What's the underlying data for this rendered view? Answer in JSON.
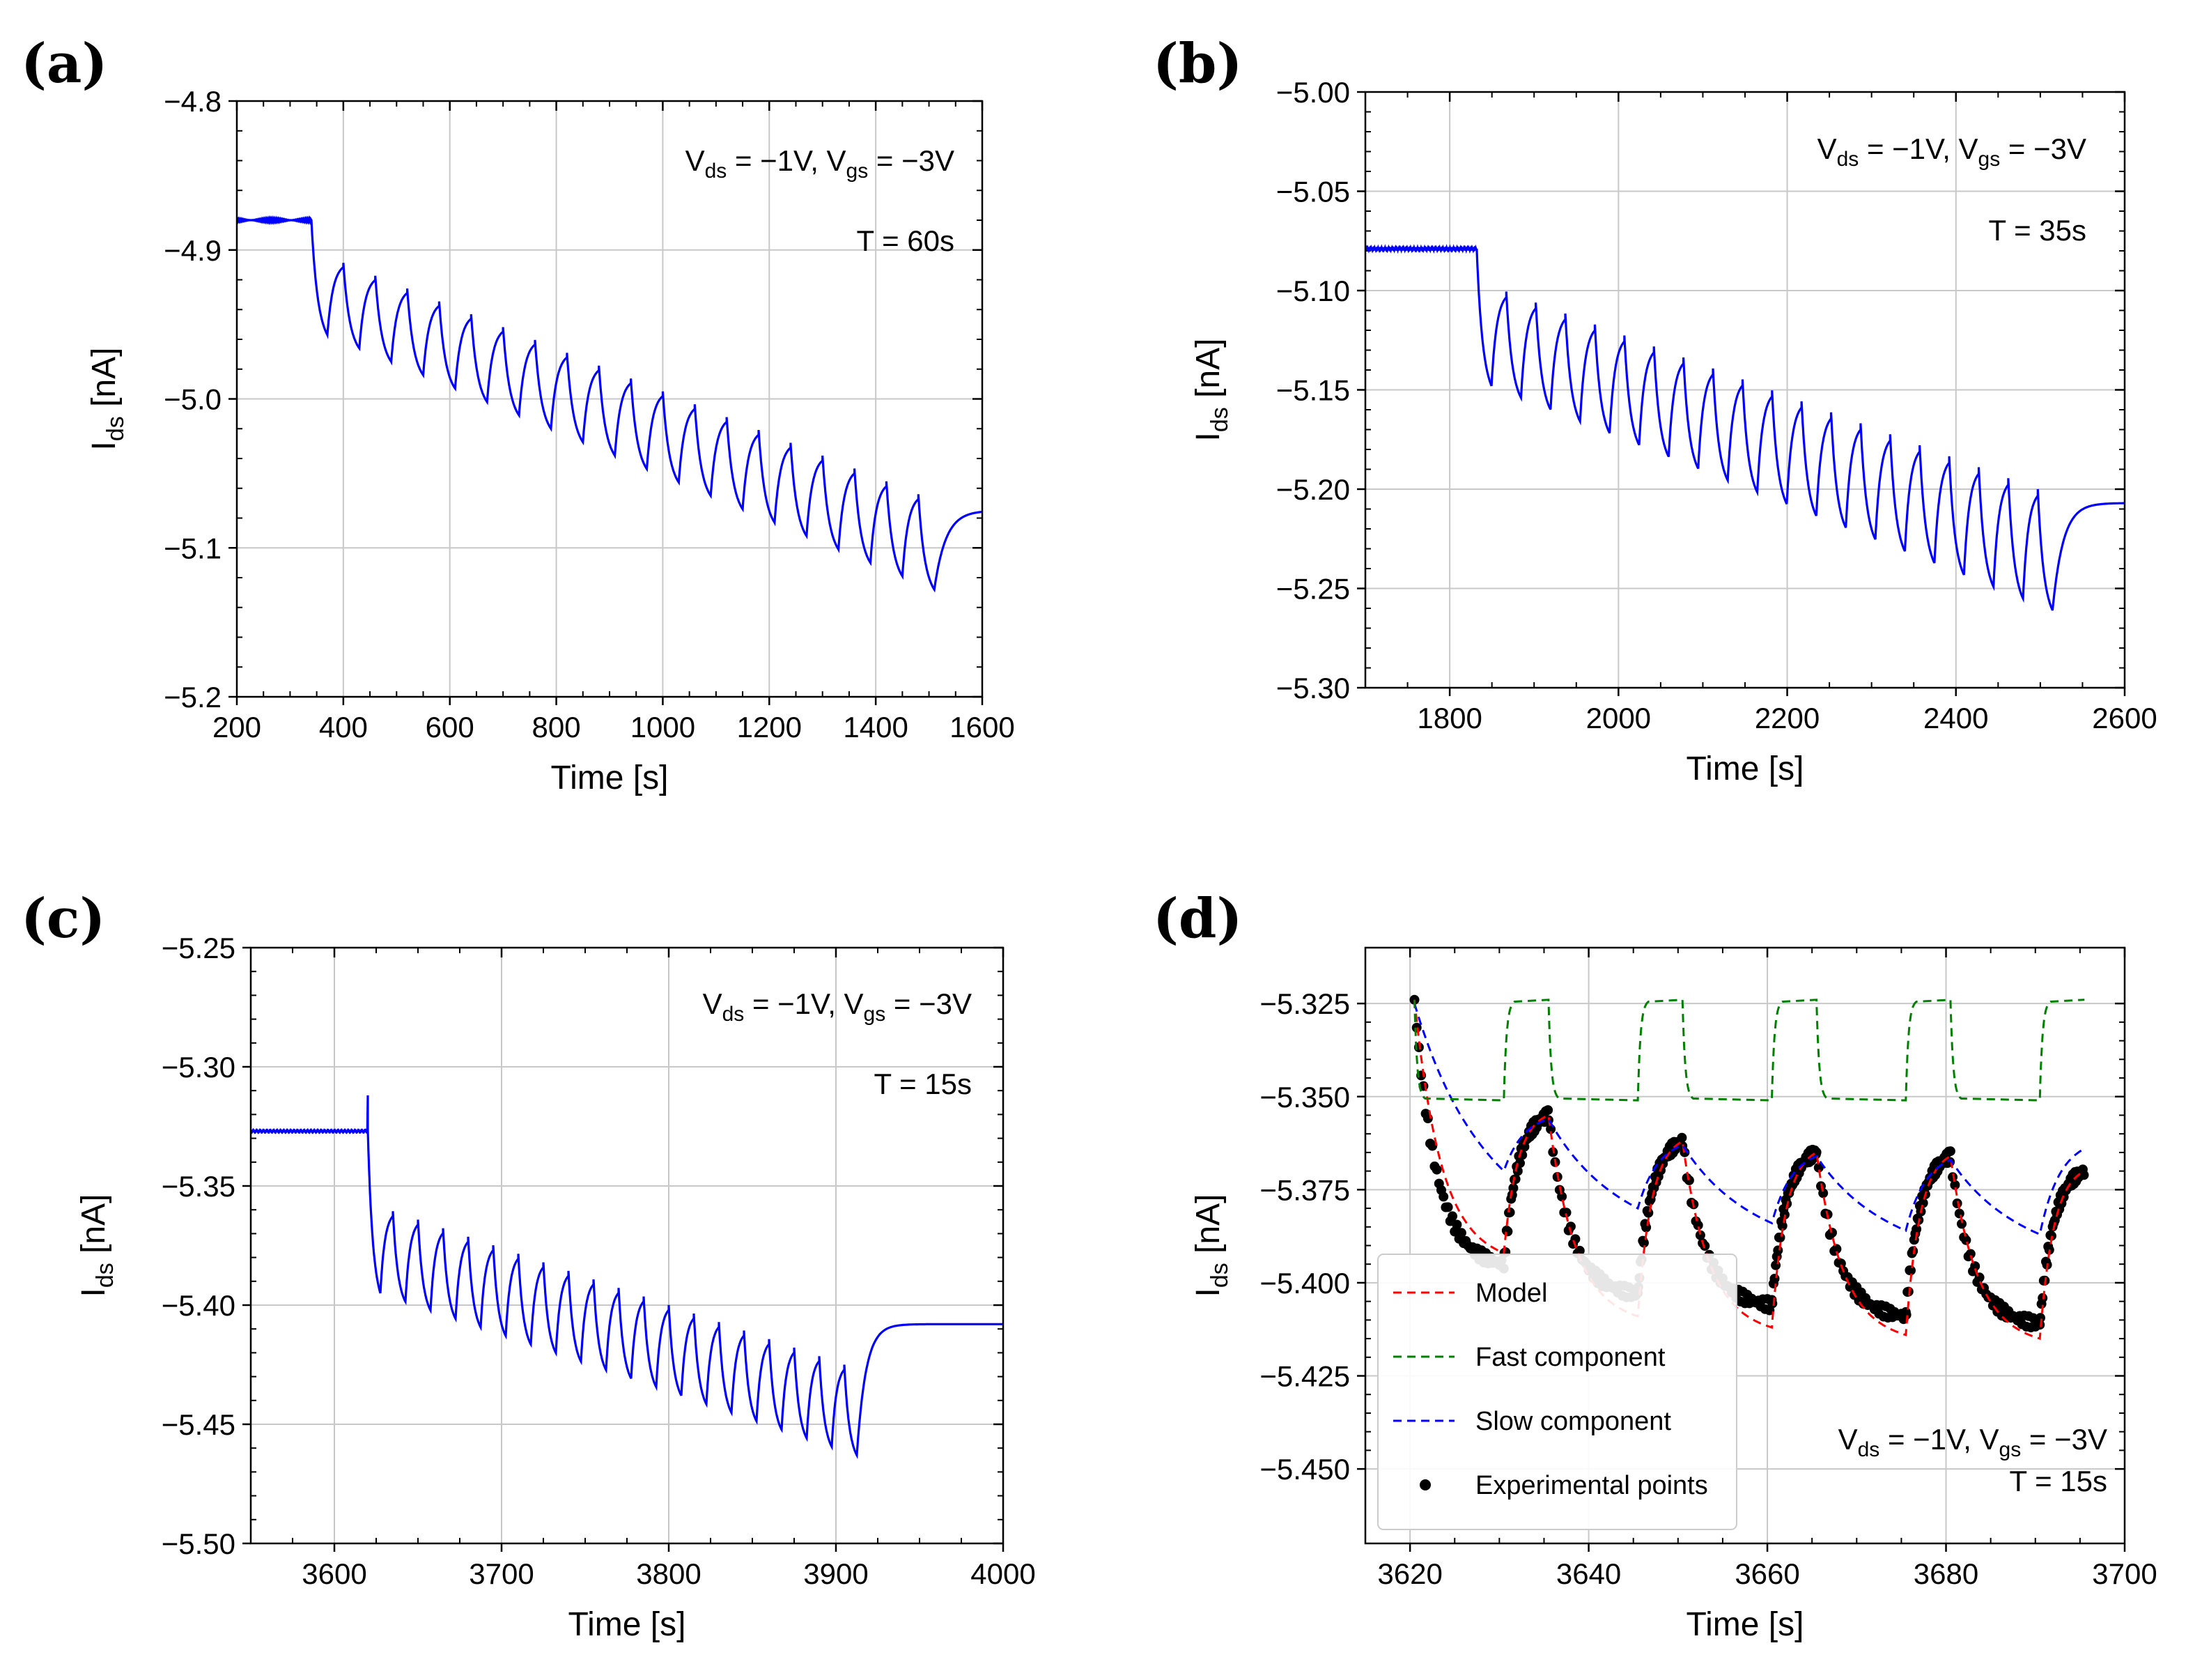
{
  "chart_data": [
    {
      "id": "a",
      "type": "line",
      "panel_label": "(a)",
      "xlabel": "Time [s]",
      "ylabel": "I",
      "ylabel_sub": "ds",
      "ylabel_unit": " [nA]",
      "xlim": [
        200,
        1600
      ],
      "ylim": [
        -5.2,
        -4.8
      ],
      "xticks": [
        200,
        400,
        600,
        800,
        1000,
        1200,
        1400,
        1600
      ],
      "xtick_labels": [
        "200",
        "400",
        "600",
        "800",
        "1000",
        "1200",
        "1400",
        "1600"
      ],
      "yticks": [
        -5.2,
        -5.1,
        -5.0,
        -4.9,
        -4.8
      ],
      "ytick_labels": [
        "−5.2",
        "−5.1",
        "−5.0",
        "−4.9",
        "−4.8"
      ],
      "annotations": [
        {
          "parts": [
            {
              "t": "V"
            },
            {
              "t": "ds",
              "sub": true
            },
            {
              "t": " = −1V, V"
            },
            {
              "t": "gs",
              "sub": true
            },
            {
              "t": " = −3V"
            }
          ]
        },
        {
          "parts": [
            {
              "t": "T = 60s"
            }
          ]
        }
      ],
      "signal": {
        "color": "#0000ff",
        "baseline": -4.88,
        "t_start": 340,
        "period": 60,
        "n_cycles": 20,
        "peak_start": -4.9,
        "peak_end": -5.064,
        "trough_start": -4.957,
        "trough_end": -5.128,
        "t_end": 1600,
        "recover_to": -5.075
      }
    },
    {
      "id": "b",
      "type": "line",
      "panel_label": "(b)",
      "xlabel": "Time [s]",
      "ylabel": "I",
      "ylabel_sub": "ds",
      "ylabel_unit": " [nA]",
      "xlim": [
        1700,
        2600
      ],
      "ylim": [
        -5.3,
        -5.0
      ],
      "xticks": [
        1800,
        2000,
        2200,
        2400,
        2600
      ],
      "xtick_labels": [
        "1800",
        "2000",
        "2200",
        "2400",
        "2600"
      ],
      "yticks": [
        -5.3,
        -5.25,
        -5.2,
        -5.15,
        -5.1,
        -5.05,
        -5.0
      ],
      "ytick_labels": [
        "−5.30",
        "−5.25",
        "−5.20",
        "−5.15",
        "−5.10",
        "−5.05",
        "−5.00"
      ],
      "annotations": [
        {
          "parts": [
            {
              "t": "V"
            },
            {
              "t": "ds",
              "sub": true
            },
            {
              "t": " = −1V, V"
            },
            {
              "t": "gs",
              "sub": true
            },
            {
              "t": " = −3V"
            }
          ]
        },
        {
          "parts": [
            {
              "t": "T = 35s"
            }
          ]
        }
      ],
      "signal": {
        "color": "#0000ff",
        "baseline": -5.079,
        "t_start": 1832,
        "period": 35,
        "n_cycles": 20,
        "peak_start": -5.095,
        "peak_end": -5.2,
        "trough_start": -5.148,
        "trough_end": -5.261,
        "t_end": 2600,
        "recover_to": -5.207
      }
    },
    {
      "id": "c",
      "type": "line",
      "panel_label": "(c)",
      "xlabel": "Time [s]",
      "ylabel": "I",
      "ylabel_sub": "ds",
      "ylabel_unit": " [nA]",
      "xlim": [
        3550,
        4000
      ],
      "ylim": [
        -5.5,
        -5.25
      ],
      "xticks": [
        3600,
        3700,
        3800,
        3900,
        4000
      ],
      "xtick_labels": [
        "3600",
        "3700",
        "3800",
        "3900",
        "4000"
      ],
      "yticks": [
        -5.5,
        -5.45,
        -5.4,
        -5.35,
        -5.3,
        -5.25
      ],
      "ytick_labels": [
        "−5.50",
        "−5.45",
        "−5.40",
        "−5.35",
        "−5.30",
        "−5.25"
      ],
      "annotations": [
        {
          "parts": [
            {
              "t": "V"
            },
            {
              "t": "ds",
              "sub": true
            },
            {
              "t": " = −1V, V"
            },
            {
              "t": "gs",
              "sub": true
            },
            {
              "t": " = −3V"
            }
          ]
        },
        {
          "parts": [
            {
              "t": "T = 15s"
            }
          ]
        }
      ],
      "signal": {
        "color": "#0000ff",
        "baseline": -5.327,
        "t_start": 3620,
        "period": 15,
        "n_cycles": 20,
        "peak_start": -5.357,
        "peak_end": -5.425,
        "trough_start": -5.395,
        "trough_end": -5.463,
        "t_end": 4000,
        "recover_to": -5.408,
        "spike": -5.312
      }
    },
    {
      "id": "d",
      "type": "line",
      "panel_label": "(d)",
      "xlabel": "Time [s]",
      "ylabel": "I",
      "ylabel_sub": "ds",
      "ylabel_unit": " [nA]",
      "xlim": [
        3615,
        3700
      ],
      "ylim": [
        -5.47,
        -5.31
      ],
      "xticks": [
        3620,
        3640,
        3660,
        3680,
        3700
      ],
      "xtick_labels": [
        "3620",
        "3640",
        "3660",
        "3680",
        "3700"
      ],
      "yticks": [
        -5.45,
        -5.425,
        -5.4,
        -5.375,
        -5.35,
        -5.325
      ],
      "ytick_labels": [
        "−5.450",
        "−5.425",
        "−5.400",
        "−5.375",
        "−5.350",
        "−5.325"
      ],
      "annotations": [
        {
          "parts": [
            {
              "t": "V"
            },
            {
              "t": "ds",
              "sub": true
            },
            {
              "t": " = −1V, V"
            },
            {
              "t": "gs",
              "sub": true
            },
            {
              "t": " = −3V"
            }
          ]
        },
        {
          "parts": [
            {
              "t": "T = 15s"
            }
          ]
        }
      ],
      "legend": {
        "position": "lower-left",
        "entries": [
          {
            "label": "Model",
            "color": "#ff0000",
            "style": "dashed"
          },
          {
            "label": "Fast component",
            "color": "#008000",
            "style": "dashed"
          },
          {
            "label": "Slow component",
            "color": "#0000ff",
            "style": "dashed"
          },
          {
            "label": "Experimental points",
            "color": "#000000",
            "style": "marker"
          }
        ]
      },
      "series": [
        {
          "name": "Model",
          "color": "#ff0000",
          "style": "dashed"
        },
        {
          "name": "Fast component",
          "color": "#008000",
          "style": "dashed"
        },
        {
          "name": "Slow component",
          "color": "#0000ff",
          "style": "dashed"
        },
        {
          "name": "Experimental points",
          "color": "#000000",
          "style": "marker"
        }
      ],
      "cycles": {
        "t0": 3620.5,
        "half_period": 7.5,
        "n_half_periods": 10,
        "trough_times": [
          3630.5,
          3645.5,
          3660.5,
          3675.5,
          3690.5
        ],
        "trough_values": [
          -5.395,
          -5.403,
          -5.406,
          -5.409,
          -5.411
        ],
        "model_trough_values": [
          -5.392,
          -5.409,
          -5.412,
          -5.414,
          -5.415
        ],
        "peak_times": [
          3635.5,
          3650.5,
          3665.5,
          3680.5
        ],
        "peak_values": [
          -5.355,
          -5.362,
          -5.365,
          -5.366
        ],
        "start_value": -5.324,
        "end_time": 3695.5,
        "end_value": -5.37,
        "slow_peaks": [
          -5.325,
          -5.356,
          -5.363,
          -5.366,
          -5.367
        ],
        "slow_troughs": [
          -5.37,
          -5.38,
          -5.384,
          -5.386,
          -5.387
        ],
        "slow_end": -5.364,
        "fast_high": -5.324,
        "fast_low": -5.351
      }
    }
  ]
}
